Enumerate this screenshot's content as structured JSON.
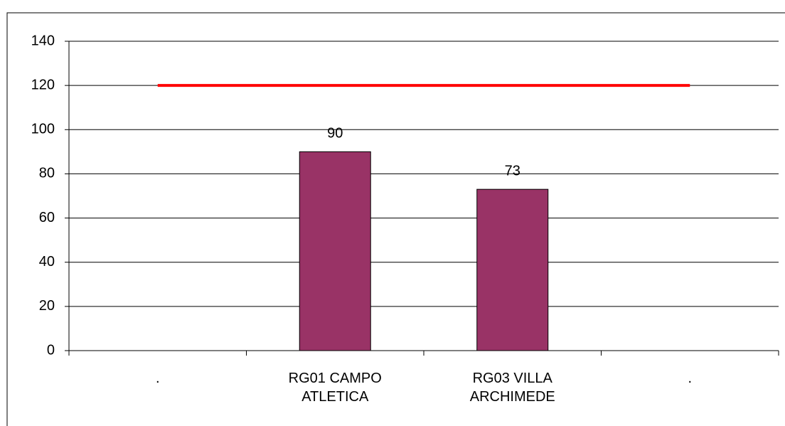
{
  "chart_data": {
    "type": "bar",
    "categories": [
      ".",
      "RG01 CAMPO ATLETICA",
      "RG03 VILLA ARCHIMEDE",
      "."
    ],
    "series": [
      {
        "type": "bar",
        "color": "#993366",
        "values": [
          null,
          90,
          73,
          null
        ]
      },
      {
        "type": "line",
        "color": "#ff0000",
        "values": [
          120,
          120,
          120,
          120
        ]
      }
    ],
    "ylim": [
      0,
      140
    ],
    "yticks": [
      0,
      20,
      40,
      60,
      80,
      100,
      120,
      140
    ],
    "grid": true
  }
}
